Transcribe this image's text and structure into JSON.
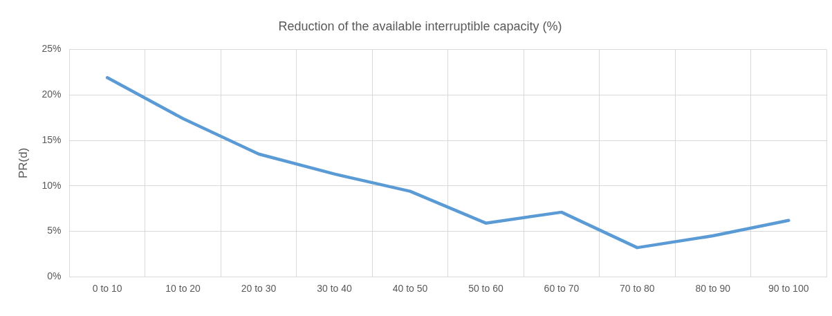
{
  "chart_data": {
    "type": "line",
    "title": "Reduction of the available interruptible capacity (%)",
    "ylabel": "PR(d)",
    "categories": [
      "0 to 10",
      "10 to 20",
      "20 to 30",
      "30 to 40",
      "40 to 50",
      "50 to 60",
      "60 to 70",
      "70 to 80",
      "80 to 90",
      "90 to 100"
    ],
    "series": [
      {
        "color": "#5b9bd5",
        "values": [
          21.9,
          17.4,
          13.5,
          11.3,
          9.4,
          5.9,
          7.1,
          3.2,
          4.5,
          6.2
        ]
      }
    ],
    "ylim": [
      0,
      25
    ],
    "yticks": [
      {
        "value": 0,
        "label": "0%"
      },
      {
        "value": 5,
        "label": "5%"
      },
      {
        "value": 10,
        "label": "10%"
      },
      {
        "value": 15,
        "label": "15%"
      },
      {
        "value": 20,
        "label": "20%"
      },
      {
        "value": 25,
        "label": "25%"
      }
    ],
    "grid": true,
    "marker": "none",
    "line_style": "solid"
  }
}
